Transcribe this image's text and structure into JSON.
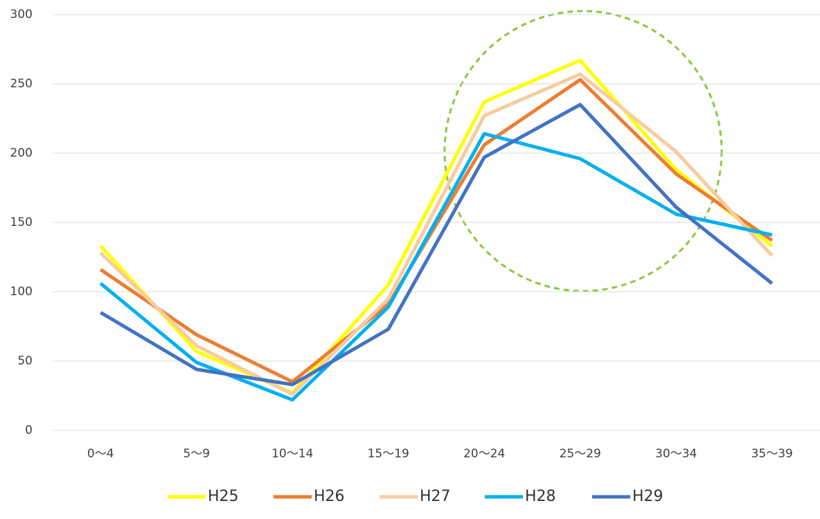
{
  "chart_data": {
    "type": "line",
    "categories": [
      "0～4",
      "5～9",
      "10～14",
      "15～19",
      "20～24",
      "25～29",
      "30～34",
      "35～39"
    ],
    "series": [
      {
        "name": "H25",
        "color": "#ffff00",
        "values": [
          133,
          57,
          27,
          105,
          237,
          267,
          188,
          133
        ]
      },
      {
        "name": "H26",
        "color": "#ed7d31",
        "values": [
          116,
          69,
          35,
          91,
          206,
          253,
          185,
          137
        ]
      },
      {
        "name": "H27",
        "color": "#f8cba0",
        "values": [
          128,
          61,
          26,
          95,
          227,
          257,
          201,
          126
        ]
      },
      {
        "name": "H28",
        "color": "#00b0f0",
        "values": [
          106,
          49,
          22,
          89,
          214,
          196,
          156,
          141
        ]
      },
      {
        "name": "H29",
        "color": "#4472c4",
        "values": [
          85,
          44,
          33,
          73,
          197,
          235,
          161,
          106
        ]
      }
    ],
    "ylim": [
      0,
      300
    ],
    "yticks": [
      0,
      50,
      100,
      150,
      200,
      250,
      300
    ],
    "grid": true,
    "legend": "bottom"
  }
}
